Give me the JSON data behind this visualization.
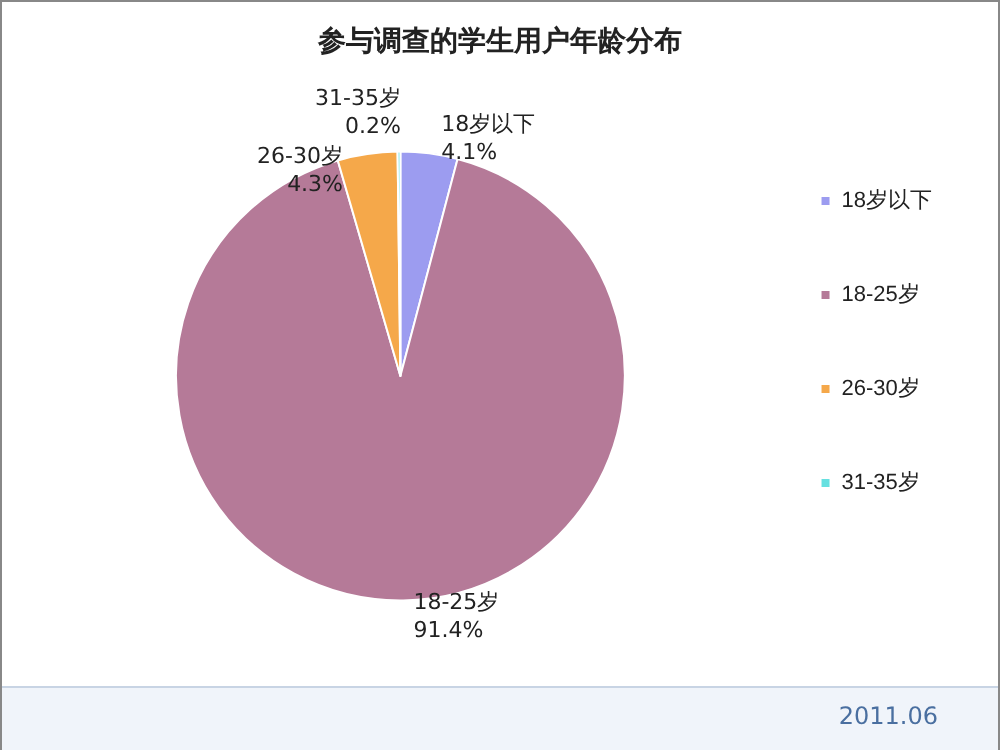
{
  "chart_data": {
    "type": "pie",
    "title": "参与调查的学生用户年龄分布",
    "categories": [
      "18岁以下",
      "18-25岁",
      "26-30岁",
      "31-35岁"
    ],
    "values": [
      4.1,
      91.4,
      4.3,
      0.2
    ],
    "colors": [
      "#9c9cf0",
      "#b57a98",
      "#f5a84a",
      "#66e0e0"
    ],
    "value_labels": [
      "4.1%",
      "91.4%",
      "4.3%",
      "0.2%"
    ],
    "legend": "right",
    "annotations": [
      "2011.06"
    ]
  }
}
